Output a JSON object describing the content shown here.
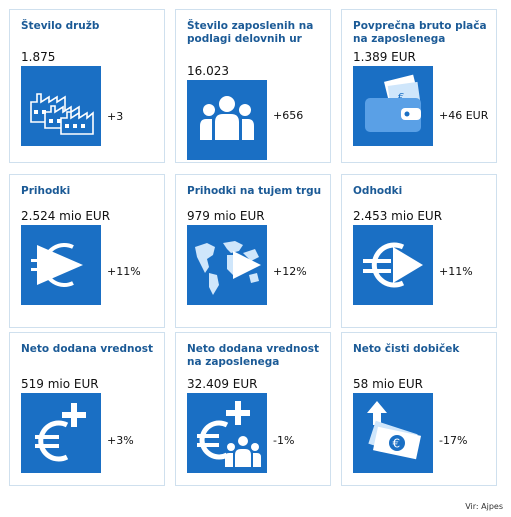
{
  "cards": [
    {
      "title": "Število družb",
      "value": "1.875",
      "change": "+3",
      "icon": "factory-icon"
    },
    {
      "title": "Število zaposlenih na podlagi delovnih ur",
      "value": "16.023",
      "change": "+656",
      "icon": "people-icon"
    },
    {
      "title": "Povprečna bruto plača na zaposlenega",
      "value": "1.389 EUR",
      "change": "+46 EUR",
      "icon": "wallet-icon"
    },
    {
      "title": "Prihodki",
      "value": "2.524 mio EUR",
      "change": "+11%",
      "icon": "play-euro-icon"
    },
    {
      "title": "Prihodki na tujem trgu",
      "value": "979 mio EUR",
      "change": "+12%",
      "icon": "world-play-icon"
    },
    {
      "title": "Odhodki",
      "value": "2.453 mio EUR",
      "change": "+11%",
      "icon": "euro-play-icon"
    },
    {
      "title": "Neto dodana vrednost",
      "value": "519 mio EUR",
      "change": "+3%",
      "icon": "euro-plus-icon"
    },
    {
      "title": "Neto dodana vrednost na zaposlenega",
      "value": "32.409 EUR",
      "change": "-1%",
      "icon": "euro-plus-people-icon"
    },
    {
      "title": "Neto čisti dobiček",
      "value": "58 mio EUR",
      "change": "-17%",
      "icon": "money-up-icon"
    }
  ],
  "source": "Vir: Ajpes",
  "colors": {
    "tile": "#1a6fc4",
    "title": "#1b5a96",
    "border": "#cfe0ee"
  }
}
